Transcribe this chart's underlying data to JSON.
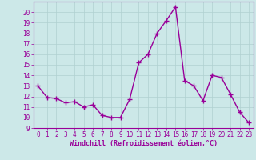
{
  "x": [
    0,
    1,
    2,
    3,
    4,
    5,
    6,
    7,
    8,
    9,
    10,
    11,
    12,
    13,
    14,
    15,
    16,
    17,
    18,
    19,
    20,
    21,
    22,
    23
  ],
  "y": [
    13.0,
    11.9,
    11.8,
    11.4,
    11.5,
    11.0,
    11.2,
    10.2,
    10.0,
    10.0,
    11.7,
    15.2,
    16.0,
    18.0,
    19.2,
    20.5,
    13.5,
    13.0,
    11.6,
    14.0,
    13.8,
    12.2,
    10.5,
    9.5
  ],
  "line_color": "#990099",
  "marker": "+",
  "marker_size": 4,
  "marker_lw": 1.0,
  "bg_color": "#cce8e8",
  "grid_color": "#b0d0d0",
  "xlabel": "Windchill (Refroidissement éolien,°C)",
  "xlabel_color": "#990099",
  "tick_color": "#990099",
  "ylim": [
    9,
    21
  ],
  "xlim": [
    -0.5,
    23.5
  ],
  "yticks": [
    9,
    10,
    11,
    12,
    13,
    14,
    15,
    16,
    17,
    18,
    19,
    20
  ],
  "xticks": [
    0,
    1,
    2,
    3,
    4,
    5,
    6,
    7,
    8,
    9,
    10,
    11,
    12,
    13,
    14,
    15,
    16,
    17,
    18,
    19,
    20,
    21,
    22,
    23
  ],
  "spine_color": "#990099",
  "line_width": 1.0,
  "tick_fontsize": 5.5,
  "xlabel_fontsize": 6.0
}
